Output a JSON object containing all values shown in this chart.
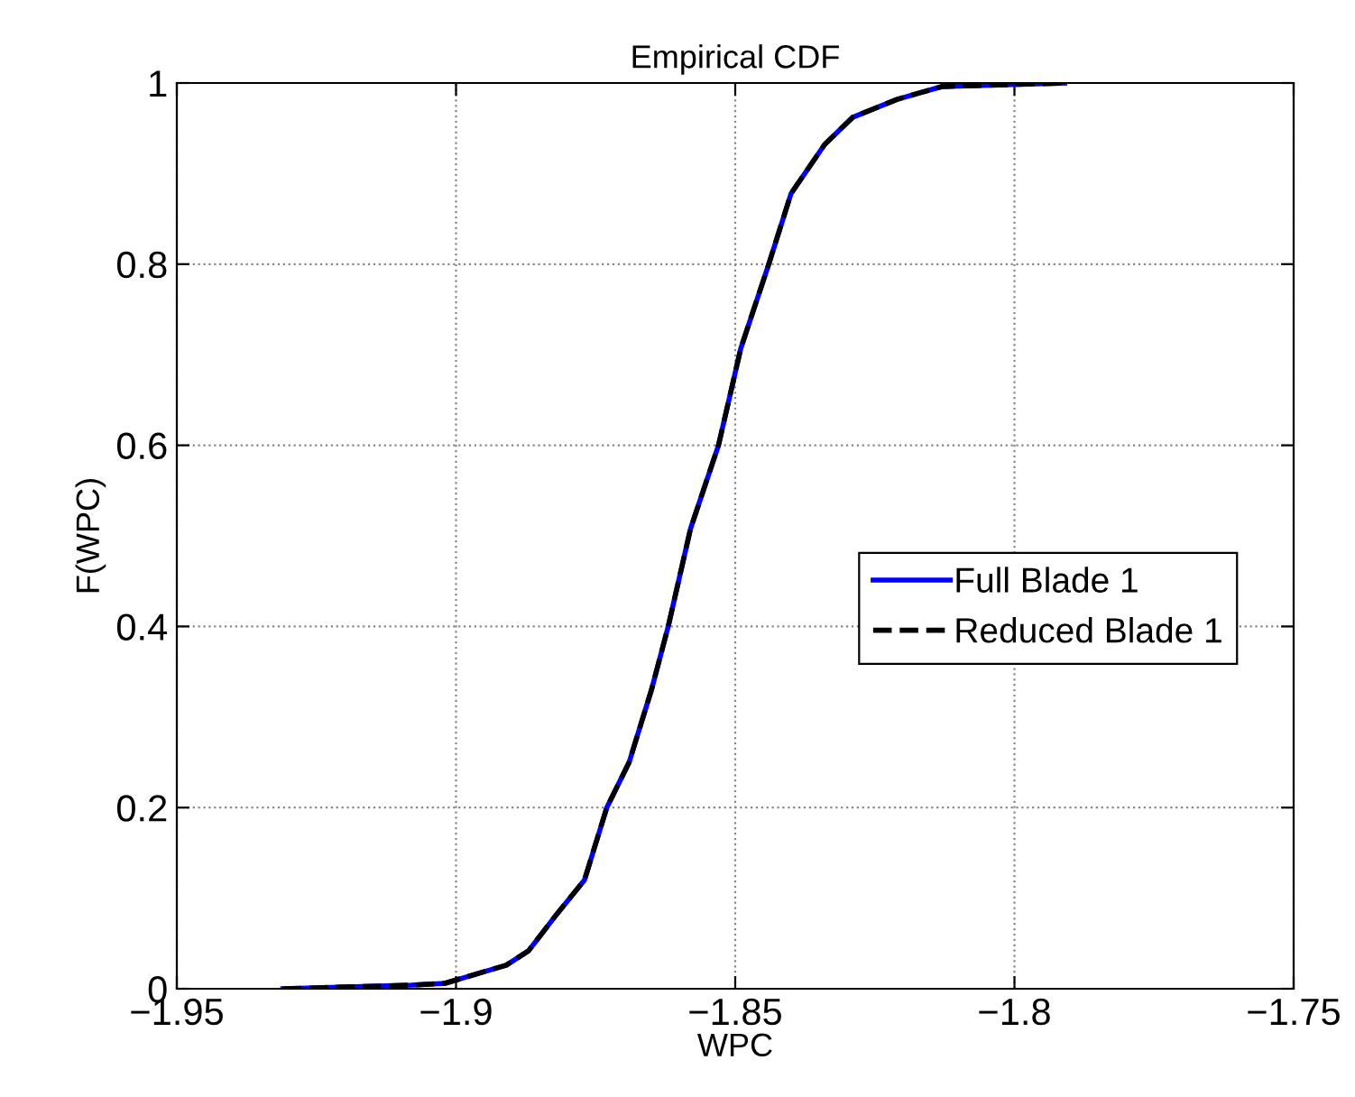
{
  "chart_data": {
    "type": "line",
    "title": "Empirical CDF",
    "xlabel": "WPC",
    "ylabel": "F(WPC)",
    "xlim": [
      -1.95,
      -1.75
    ],
    "xticks": [
      {
        "value": -1.95,
        "label": "−1.95"
      },
      {
        "value": -1.9,
        "label": "−1.9"
      },
      {
        "value": -1.85,
        "label": "−1.85"
      },
      {
        "value": -1.8,
        "label": "−1.8"
      },
      {
        "value": -1.75,
        "label": "−1.75"
      }
    ],
    "ylim": [
      0,
      1
    ],
    "yticks": [
      0,
      0.2,
      0.4,
      0.6,
      0.8,
      1
    ],
    "x": [
      -1.931,
      -1.908,
      -1.902,
      -1.891,
      -1.887,
      -1.882,
      -1.877,
      -1.873,
      -1.869,
      -1.865,
      -1.862,
      -1.858,
      -1.853,
      -1.849,
      -1.844,
      -1.84,
      -1.834,
      -1.829,
      -1.821,
      -1.813,
      -1.791
    ],
    "series": [
      {
        "name": "Full Blade 1",
        "color": "#0000ff",
        "line_style": "solid",
        "values": [
          0,
          0.004,
          0.006,
          0.026,
          0.042,
          0.082,
          0.12,
          0.2,
          0.25,
          0.33,
          0.4,
          0.508,
          0.6,
          0.707,
          0.8,
          0.878,
          0.932,
          0.962,
          0.982,
          0.996,
          1
        ]
      },
      {
        "name": "Reduced Blade 1",
        "color": "#000000",
        "line_style": "dashed",
        "values": [
          0,
          0.004,
          0.006,
          0.026,
          0.042,
          0.082,
          0.12,
          0.2,
          0.25,
          0.33,
          0.4,
          0.508,
          0.6,
          0.707,
          0.8,
          0.878,
          0.932,
          0.962,
          0.982,
          0.996,
          1
        ]
      }
    ],
    "grid": true,
    "legend": "right",
    "marker": "none"
  }
}
